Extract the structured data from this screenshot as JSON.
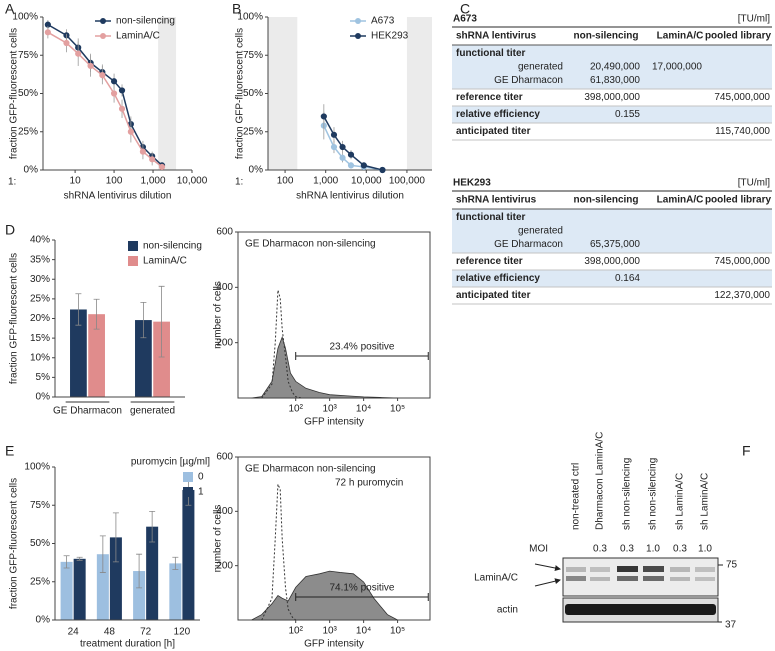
{
  "chart_data": [
    {
      "type": "line",
      "panel": "A",
      "y_label": "fraction GFP-fluorescent cells",
      "x_label": "shRNA lentivirus dilution",
      "x_prefix": "1:",
      "log_x": true,
      "x": [
        2,
        6,
        12,
        25,
        50,
        100,
        160,
        270,
        550,
        950,
        1700
      ],
      "series": [
        {
          "name": "non-silencing",
          "color": "#1f3a5f",
          "values": [
            95,
            88,
            80,
            70,
            64,
            58,
            52,
            30,
            15,
            9,
            3
          ],
          "errors": [
            3,
            4,
            6,
            6,
            5,
            5,
            4,
            5,
            4,
            3,
            2
          ]
        },
        {
          "name": "LaminA/C",
          "color": "#e3a0a0",
          "values": [
            90,
            83,
            76,
            68,
            62,
            50,
            40,
            25,
            12,
            7,
            2
          ],
          "errors": [
            4,
            6,
            8,
            7,
            6,
            6,
            6,
            7,
            5,
            4,
            2
          ]
        }
      ],
      "xlim": [
        1.5,
        10000
      ],
      "ylim": [
        0,
        100
      ],
      "xticks": [
        10,
        100,
        {
          "value": 1000,
          "label": "1,000"
        },
        {
          "value": 10000,
          "label": "10,000"
        }
      ],
      "yticks": [
        {
          "value": 0,
          "label": "0%"
        },
        {
          "value": 25,
          "label": "25%"
        },
        {
          "value": 50,
          "label": "50%"
        },
        {
          "value": 75,
          "label": "75%"
        },
        {
          "value": 100,
          "label": "100%"
        }
      ],
      "shaded": [
        [
          1350,
          3900
        ]
      ]
    },
    {
      "type": "line",
      "panel": "B",
      "y_label": "fraction GFP-fluorescent cells",
      "x_label": "shRNA lentivirus dilution",
      "x_prefix": "1:",
      "log_x": true,
      "x": [
        900,
        1600,
        2600,
        4200,
        8700,
        25000
      ],
      "series": [
        {
          "name": "A673",
          "color": "#9fc3e0",
          "values": [
            29,
            15,
            8,
            3,
            2,
            0
          ],
          "errors": [
            9,
            4,
            3,
            2,
            1,
            1
          ]
        },
        {
          "name": "HEK293",
          "color": "#1f3a5f",
          "values": [
            35,
            23,
            15,
            10,
            3,
            0
          ],
          "errors": [
            8,
            5,
            4,
            3,
            2,
            1
          ]
        }
      ],
      "xlim": [
        38,
        414000
      ],
      "ylim": [
        0,
        100
      ],
      "xticks": [
        100,
        {
          "value": 1000,
          "label": "1,000"
        },
        {
          "value": 10000,
          "label": "10,000"
        },
        {
          "value": 100000,
          "label": "100,000"
        }
      ],
      "yticks": [
        {
          "value": 0,
          "label": "0%"
        },
        {
          "value": 25,
          "label": "25%"
        },
        {
          "value": 50,
          "label": "50%"
        },
        {
          "value": 75,
          "label": "75%"
        },
        {
          "value": 100,
          "label": "100%"
        }
      ],
      "shaded": [
        [
          38,
          200
        ],
        [
          100000,
          414000
        ]
      ]
    },
    {
      "type": "bar",
      "panel": "D",
      "y_label": "fraction GFP-fluorescent cells",
      "categories": [
        "GE Dharmacon",
        "generated"
      ],
      "series": [
        {
          "name": "non-silencing",
          "color": "#1f3a5f",
          "values": [
            22.3,
            19.6
          ],
          "errors": [
            4,
            4.5
          ]
        },
        {
          "name": "LaminA/C",
          "color": "#e08c8c",
          "values": [
            21.1,
            19.2
          ],
          "errors": [
            3.8,
            9
          ]
        }
      ],
      "ylim": [
        0,
        40
      ],
      "yticks": [
        {
          "value": 0,
          "label": "0%"
        },
        {
          "value": 5,
          "label": "5%"
        },
        {
          "value": 10,
          "label": "10%"
        },
        {
          "value": 15,
          "label": "15%"
        },
        {
          "value": 20,
          "label": "20%"
        },
        {
          "value": 25,
          "label": "25%"
        },
        {
          "value": 30,
          "label": "30%"
        },
        {
          "value": 35,
          "label": "35%"
        },
        {
          "value": 40,
          "label": "40%"
        }
      ]
    },
    {
      "type": "area",
      "title": "GE Dharmacon non-silencing",
      "y_label": "number of cells",
      "x_label": "GFP intensity",
      "log_x": true,
      "series": [
        {
          "color": "#8c8c8c",
          "fill": true,
          "x": [
            5,
            10,
            20,
            30,
            40,
            50,
            70,
            100,
            200,
            500,
            1000,
            3000,
            10000,
            30000,
            100000
          ],
          "values": [
            0,
            5,
            60,
            180,
            220,
            180,
            90,
            60,
            35,
            20,
            12,
            8,
            4,
            2,
            0
          ]
        },
        {
          "color": "#333333",
          "dashed": true,
          "x": [
            10,
            20,
            25,
            30,
            35,
            40,
            50,
            60,
            80,
            100,
            150
          ],
          "values": [
            0,
            50,
            200,
            390,
            360,
            250,
            150,
            60,
            20,
            5,
            0
          ]
        }
      ],
      "xlim": [
        2,
        900000
      ],
      "ylim": [
        0,
        600
      ],
      "xticks": [
        {
          "value": 100,
          "label": "10²"
        },
        {
          "value": 1000,
          "label": "10³"
        },
        {
          "value": 10000,
          "label": "10⁴"
        },
        {
          "value": 100000,
          "label": "10⁵"
        }
      ],
      "yticks": [
        200,
        400,
        600
      ],
      "gate": [
        100,
        800000
      ],
      "annotation": "23.4% positive"
    },
    {
      "type": "bar",
      "panel": "E",
      "y_label": "fraction GFP-fluorescent cells",
      "x_label": "treatment duration [h]",
      "legend_title": "puromycin [µg/ml]",
      "categories": [
        "24",
        "48",
        "72",
        "120"
      ],
      "series": [
        {
          "name": "0",
          "color": "#9dbfe0",
          "values": [
            38,
            43,
            32,
            37
          ],
          "errors": [
            4,
            12,
            11,
            4
          ]
        },
        {
          "name": "1",
          "color": "#1f3a5f",
          "values": [
            40,
            54,
            61,
            85
          ],
          "errors": [
            1,
            16,
            10,
            10
          ]
        }
      ],
      "ylim": [
        0,
        100
      ],
      "yticks": [
        {
          "value": 0,
          "label": "0%"
        },
        {
          "value": 25,
          "label": "25%"
        },
        {
          "value": 50,
          "label": "50%"
        },
        {
          "value": 75,
          "label": "75%"
        },
        {
          "value": 100,
          "label": "100%"
        }
      ]
    },
    {
      "type": "area",
      "title": "GE Dharmacon non-silencing",
      "subtitle": "72 h puromycin",
      "y_label": "number of cells",
      "x_label": "GFP intensity",
      "log_x": true,
      "series": [
        {
          "color": "#8c8c8c",
          "fill": true,
          "x": [
            5,
            10,
            20,
            30,
            40,
            60,
            100,
            200,
            500,
            1000,
            2000,
            5000,
            10000,
            20000,
            50000,
            100000
          ],
          "values": [
            0,
            20,
            60,
            90,
            80,
            70,
            120,
            160,
            170,
            180,
            175,
            170,
            140,
            80,
            20,
            0
          ]
        },
        {
          "color": "#333333",
          "dashed": true,
          "x": [
            10,
            20,
            25,
            30,
            35,
            40,
            50,
            60,
            80,
            100
          ],
          "values": [
            0,
            80,
            300,
            500,
            480,
            300,
            120,
            40,
            10,
            0
          ]
        }
      ],
      "xlim": [
        2,
        900000
      ],
      "ylim": [
        0,
        600
      ],
      "xticks": [
        {
          "value": 100,
          "label": "10²"
        },
        {
          "value": 1000,
          "label": "10³"
        },
        {
          "value": 10000,
          "label": "10⁴"
        },
        {
          "value": 100000,
          "label": "10⁵"
        }
      ],
      "yticks": [
        200,
        400,
        600
      ],
      "gate": [
        100,
        800000
      ],
      "annotation": "74.1% positive"
    }
  ],
  "tables": {
    "label": "C",
    "items": [
      {
        "title": "A673",
        "unit": "[TU/ml]",
        "header": [
          "shRNA lentivirus",
          "non-silencing",
          "LaminA/C",
          "pooled library"
        ],
        "rows": [
          {
            "label": "functional titer",
            "sub_rows": [
              {
                "label": "generated",
                "cells": [
                  "20,490,000",
                  "17,000,000",
                  null
                ]
              },
              {
                "label": "GE Dharmacon",
                "cells": [
                  "61,830,000",
                  null,
                  null
                ]
              }
            ]
          },
          {
            "label": "reference titer",
            "cells": [
              "398,000,000",
              null,
              "745,000,000"
            ]
          },
          {
            "label": "relative efficiency",
            "cells": [
              "0.155",
              null,
              null
            ]
          },
          {
            "label": "anticipated titer",
            "cells": [
              null,
              null,
              "115,740,000"
            ]
          }
        ]
      },
      {
        "title": "HEK293",
        "unit": "[TU/ml]",
        "header": [
          "shRNA lentivirus",
          "non-silencing",
          "LaminA/C",
          "pooled library"
        ],
        "rows": [
          {
            "label": "functional titer",
            "sub_rows": [
              {
                "label": "generated",
                "cells": [
                  null,
                  null,
                  null
                ]
              },
              {
                "label": "GE Dharmacon",
                "cells": [
                  "65,375,000",
                  null,
                  null
                ]
              }
            ]
          },
          {
            "label": "reference titer",
            "cells": [
              "398,000,000",
              null,
              "745,000,000"
            ]
          },
          {
            "label": "relative efficiency",
            "cells": [
              "0.164",
              null,
              null
            ]
          },
          {
            "label": "anticipated titer",
            "cells": [
              null,
              null,
              "122,370,000"
            ]
          }
        ]
      }
    ]
  },
  "blot": {
    "label": "F",
    "lanes": [
      "non-treated ctrl",
      "Dharmacon LaminA/C",
      "sh non-silencing",
      "sh non-silencing",
      "sh LaminA/C",
      "sh LaminA/C"
    ],
    "moi_label": "MOI",
    "moi": [
      null,
      "0.3",
      "0.3",
      "1.0",
      "0.3",
      "1.0"
    ],
    "bands": [
      "LaminA/C",
      "actin"
    ],
    "markers": [
      75,
      37
    ]
  }
}
